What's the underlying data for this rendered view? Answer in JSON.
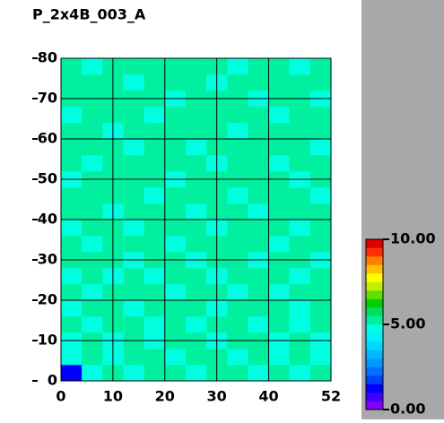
{
  "chart_data": {
    "type": "heatmap",
    "title": "P_2x4B_003_A",
    "xlim": [
      0,
      52
    ],
    "ylim": [
      0,
      80
    ],
    "xticks": [
      0,
      10,
      20,
      30,
      40,
      52
    ],
    "yticks": [
      0,
      10,
      20,
      30,
      40,
      50,
      60,
      70,
      80
    ],
    "grid": true,
    "values": [
      [
        1.2,
        4.8,
        5.1,
        4.9,
        5.2,
        5.0,
        4.7,
        5.1,
        5.3,
        4.9,
        5.0,
        4.6,
        5.2
      ],
      [
        4.7,
        5.0,
        4.9,
        5.2,
        5.1,
        4.8,
        5.0,
        5.3,
        4.9,
        5.1,
        4.8,
        5.0,
        4.9
      ],
      [
        4.9,
        5.2,
        4.8,
        5.0,
        4.7,
        5.1,
        5.2,
        4.9,
        5.0,
        5.3,
        4.9,
        5.1,
        4.8
      ],
      [
        5.1,
        4.9,
        5.0,
        5.3,
        4.9,
        5.0,
        4.8,
        5.1,
        5.2,
        4.8,
        5.1,
        4.9,
        5.0
      ],
      [
        4.8,
        5.1,
        5.2,
        4.9,
        5.0,
        5.2,
        5.1,
        4.8,
        5.0,
        5.1,
        5.2,
        4.8,
        5.1
      ],
      [
        5.0,
        4.8,
        5.1,
        5.0,
        5.3,
        4.9,
        5.0,
        5.2,
        4.8,
        5.0,
        4.9,
        5.2,
        5.0
      ],
      [
        4.9,
        5.2,
        4.9,
        5.1,
        4.8,
        5.1,
        5.3,
        4.9,
        5.1,
        5.2,
        5.0,
        4.9,
        5.1
      ],
      [
        5.2,
        5.0,
        5.1,
        4.8,
        5.0,
        5.2,
        4.9,
        5.0,
        5.3,
        4.9,
        5.1,
        5.0,
        4.8
      ],
      [
        5.0,
        4.9,
        5.3,
        5.1,
        5.2,
        4.8,
        5.1,
        5.2,
        5.0,
        5.1,
        4.8,
        5.2,
        5.0
      ],
      [
        4.8,
        5.1,
        5.0,
        4.9,
        5.1,
        5.0,
        5.2,
        4.8,
        5.1,
        5.0,
        5.2,
        4.9,
        5.1
      ],
      [
        5.1,
        5.0,
        4.8,
        5.2,
        5.0,
        5.3,
        4.9,
        5.1,
        5.0,
        4.8,
        5.1,
        5.0,
        5.2
      ],
      [
        5.0,
        5.2,
        5.1,
        5.0,
        4.9,
        5.1,
        5.0,
        5.3,
        4.9,
        5.2,
        5.0,
        5.1,
        4.9
      ],
      [
        4.9,
        5.0,
        5.2,
        5.3,
        5.1,
        4.9,
        5.2,
        5.0,
        5.1,
        5.0,
        5.3,
        4.8,
        5.0
      ],
      [
        5.2,
        4.9,
        5.0,
        5.1,
        5.0,
        5.2,
        5.1,
        4.9,
        5.2,
        5.1,
        4.9,
        5.1,
        5.1
      ],
      [
        5.0,
        5.1,
        5.3,
        4.9,
        5.2,
        5.0,
        4.8,
        5.1,
        5.0,
        5.3,
        5.1,
        5.0,
        4.9
      ],
      [
        5.1,
        5.0,
        4.9,
        5.2,
        5.1,
        5.3,
        5.0,
        5.2,
        4.9,
        5.0,
        5.2,
        5.1,
        5.0
      ],
      [
        4.9,
        5.2,
        5.1,
        5.0,
        4.9,
        5.1,
        5.2,
        5.0,
        5.3,
        5.1,
        4.9,
        5.2,
        5.1
      ],
      [
        5.2,
        5.0,
        5.0,
        5.3,
        5.1,
        4.9,
        5.1,
        5.2,
        5.0,
        4.9,
        5.1,
        5.0,
        4.8
      ],
      [
        5.0,
        5.1,
        5.2,
        4.9,
        5.0,
        5.2,
        5.0,
        4.9,
        5.1,
        5.2,
        5.0,
        5.3,
        5.0
      ],
      [
        5.1,
        4.9,
        5.0,
        5.1,
        5.2,
        5.0,
        5.1,
        5.3,
        4.9,
        5.0,
        5.1,
        4.9,
        5.2
      ]
    ],
    "colormap": [
      "#8000ff",
      "#4000ff",
      "#0000ff",
      "#0040ff",
      "#0070ff",
      "#0098ff",
      "#00b8ff",
      "#00d8ff",
      "#00f0ff",
      "#00ffe0",
      "#00f0a0",
      "#00e060",
      "#00d000",
      "#60e000",
      "#c0f000",
      "#ffff00",
      "#ffc000",
      "#ff8000",
      "#ff3000",
      "#e00000"
    ],
    "clim": [
      0,
      10
    ],
    "colorbar_ticks": [
      {
        "value": 0,
        "label": "0.00"
      },
      {
        "value": 5,
        "label": "5.00"
      },
      {
        "value": 10,
        "label": "10.00"
      }
    ]
  }
}
